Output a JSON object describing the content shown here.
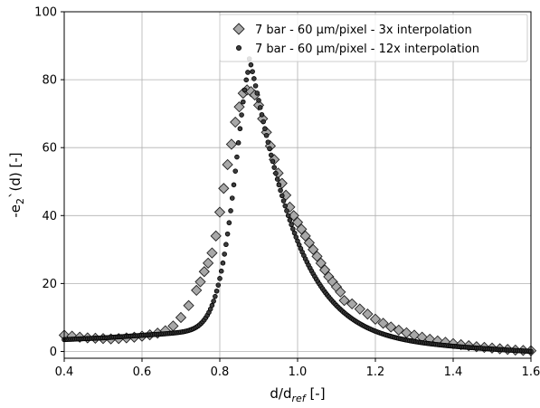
{
  "chart_data": {
    "type": "scatter",
    "xlabel": {
      "main": "d/d",
      "sub": "ref",
      "unit": " [-]"
    },
    "ylabel": {
      "pre": "-e",
      "sub": "2",
      "post": "`(d) [-]"
    },
    "xlim": [
      0.4,
      1.6
    ],
    "ylim": [
      -2,
      100
    ],
    "xticks": [
      0.4,
      0.6,
      0.8,
      1.0,
      1.2,
      1.4,
      1.6
    ],
    "xtick_labels": [
      "0.4",
      "0.6",
      "0.8",
      "1.0",
      "1.2",
      "1.4",
      "1.6"
    ],
    "yticks": [
      0,
      20,
      40,
      60,
      80,
      100
    ],
    "ytick_labels": [
      "0",
      "20",
      "40",
      "60",
      "80",
      "100"
    ],
    "grid": true,
    "legend_position": "top-right",
    "series": [
      {
        "name": "7 bar - 60 µm/pixel - 3x interpolation",
        "marker": "diamond",
        "color": "#a8a8a8",
        "edge": "#222222",
        "points": [
          [
            0.4,
            4.8
          ],
          [
            0.42,
            4.5
          ],
          [
            0.44,
            4.2
          ],
          [
            0.46,
            4.0
          ],
          [
            0.48,
            3.9
          ],
          [
            0.5,
            3.8
          ],
          [
            0.52,
            3.7
          ],
          [
            0.54,
            3.8
          ],
          [
            0.56,
            4.0
          ],
          [
            0.58,
            4.2
          ],
          [
            0.6,
            4.5
          ],
          [
            0.62,
            4.9
          ],
          [
            0.64,
            5.4
          ],
          [
            0.66,
            6.1
          ],
          [
            0.68,
            7.5
          ],
          [
            0.7,
            10.0
          ],
          [
            0.72,
            13.5
          ],
          [
            0.74,
            18.0
          ],
          [
            0.75,
            20.5
          ],
          [
            0.76,
            23.5
          ],
          [
            0.77,
            26.0
          ],
          [
            0.78,
            29.0
          ],
          [
            0.79,
            34.0
          ],
          [
            0.8,
            41.0
          ],
          [
            0.81,
            48.0
          ],
          [
            0.82,
            55.0
          ],
          [
            0.83,
            61.0
          ],
          [
            0.84,
            67.5
          ],
          [
            0.85,
            72.0
          ],
          [
            0.86,
            76.0
          ],
          [
            0.87,
            77.0
          ],
          [
            0.88,
            76.5
          ],
          [
            0.89,
            75.5
          ],
          [
            0.9,
            72.5
          ],
          [
            0.91,
            68.5
          ],
          [
            0.92,
            64.5
          ],
          [
            0.93,
            60.5
          ],
          [
            0.94,
            56.5
          ],
          [
            0.95,
            52.5
          ],
          [
            0.96,
            49.5
          ],
          [
            0.97,
            46.0
          ],
          [
            0.98,
            42.5
          ],
          [
            0.99,
            40.0
          ],
          [
            1.0,
            38.0
          ],
          [
            1.01,
            36.0
          ],
          [
            1.02,
            34.0
          ],
          [
            1.03,
            32.0
          ],
          [
            1.04,
            30.0
          ],
          [
            1.05,
            28.0
          ],
          [
            1.06,
            26.0
          ],
          [
            1.07,
            24.0
          ],
          [
            1.08,
            22.0
          ],
          [
            1.09,
            20.5
          ],
          [
            1.1,
            19.0
          ],
          [
            1.11,
            17.5
          ],
          [
            1.12,
            15.0
          ],
          [
            1.14,
            14.0
          ],
          [
            1.16,
            12.5
          ],
          [
            1.18,
            11.0
          ],
          [
            1.2,
            9.5
          ],
          [
            1.22,
            8.3
          ],
          [
            1.24,
            7.2
          ],
          [
            1.26,
            6.3
          ],
          [
            1.28,
            5.5
          ],
          [
            1.3,
            4.8
          ],
          [
            1.32,
            4.2
          ],
          [
            1.34,
            3.6
          ],
          [
            1.36,
            3.1
          ],
          [
            1.38,
            2.7
          ],
          [
            1.4,
            2.3
          ],
          [
            1.42,
            2.0
          ],
          [
            1.44,
            1.7
          ],
          [
            1.46,
            1.4
          ],
          [
            1.48,
            1.2
          ],
          [
            1.5,
            1.0
          ],
          [
            1.52,
            0.8
          ],
          [
            1.54,
            0.6
          ],
          [
            1.56,
            0.4
          ],
          [
            1.58,
            0.3
          ],
          [
            1.6,
            0.2
          ]
        ]
      },
      {
        "name": "7 bar - 60 µm/pixel - 12x interpolation",
        "marker": "circle",
        "color": "#3c3c3c",
        "edge": "#000000",
        "curve": {
          "peak_x": 0.875,
          "peak_y": 83,
          "baseline_left": 4.0,
          "baseline_right": 0.0,
          "x_start": 0.4,
          "x_end": 1.6,
          "step": 0.004
        }
      }
    ]
  }
}
